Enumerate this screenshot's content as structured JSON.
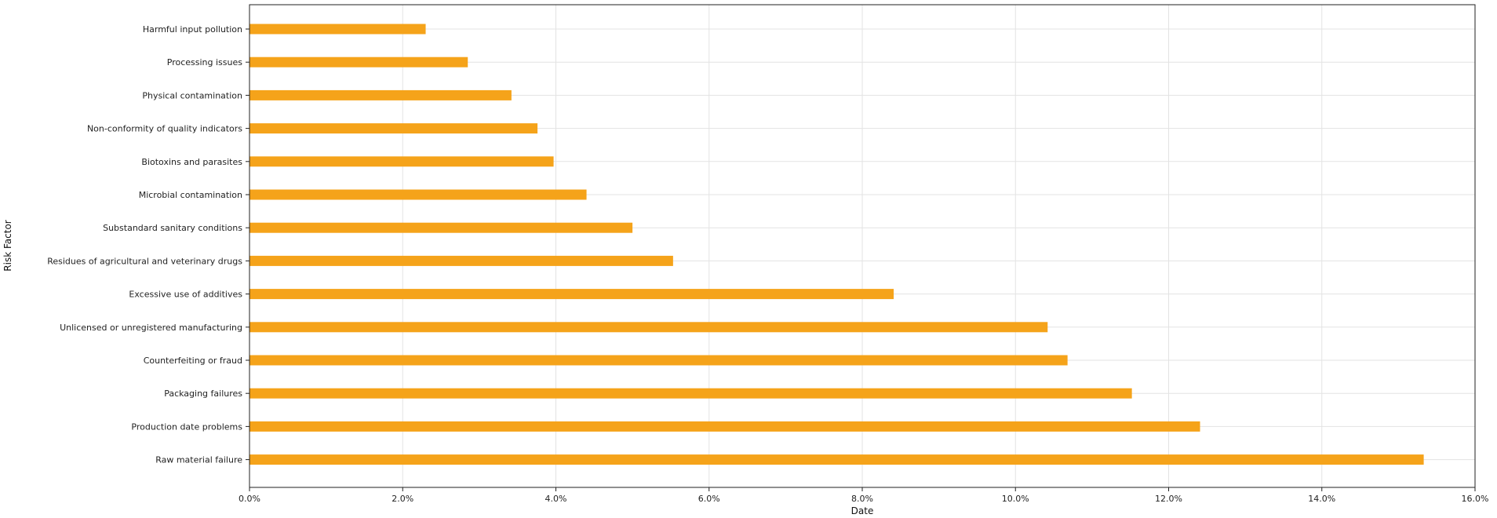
{
  "chart_data": {
    "type": "bar",
    "orientation": "horizontal",
    "categories": [
      "Harmful input pollution",
      "Processing issues",
      "Physical contamination",
      "Non-conformity of quality indicators",
      "Biotoxins and parasites",
      "Microbial contamination",
      "Substandard sanitary conditions",
      "Residues of agricultural and veterinary drugs",
      "Excessive use of additives",
      "Unlicensed or unregistered manufacturing",
      "Counterfeiting or fraud",
      "Packaging failures",
      "Production date problems",
      "Raw material failure"
    ],
    "values": [
      2.3,
      2.85,
      3.42,
      3.76,
      3.97,
      4.4,
      5.0,
      5.53,
      8.41,
      10.42,
      10.68,
      11.52,
      12.41,
      15.33
    ],
    "xlabel": "Date",
    "ylabel": "Risk Factor",
    "xlim": [
      0,
      16
    ],
    "xticks": [
      "0.0%",
      "2.0%",
      "4.0%",
      "6.0%",
      "8.0%",
      "10.0%",
      "12.0%",
      "14.0%",
      "16.0%"
    ],
    "bar_color": "#f5a31a",
    "grid": true,
    "legend": "none"
  }
}
